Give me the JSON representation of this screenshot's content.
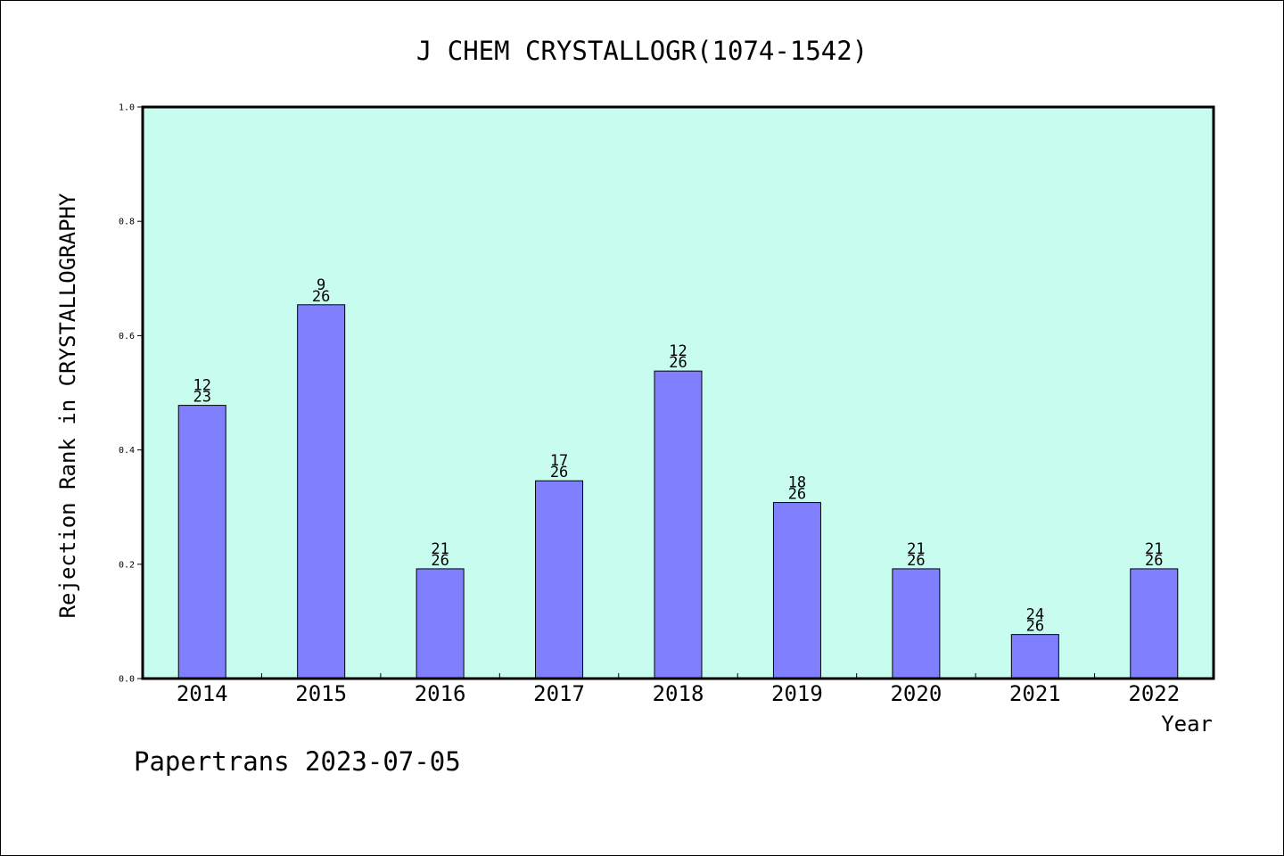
{
  "chart_data": {
    "type": "bar",
    "title": "J CHEM CRYSTALLOGR(1074-1542)",
    "xlabel": "Year",
    "ylabel": "Rejection Rank in CRYSTALLOGRAPHY",
    "categories": [
      "2014",
      "2015",
      "2016",
      "2017",
      "2018",
      "2019",
      "2020",
      "2021",
      "2022"
    ],
    "values": [
      0.478,
      0.654,
      0.192,
      0.346,
      0.538,
      0.308,
      0.192,
      0.077,
      0.192
    ],
    "labels_top": [
      "12",
      "9",
      "21",
      "17",
      "12",
      "18",
      "21",
      "24",
      "21"
    ],
    "labels_bottom": [
      "23",
      "26",
      "26",
      "26",
      "26",
      "26",
      "26",
      "26",
      "26"
    ],
    "ylim": [
      0,
      1.0
    ],
    "yticks": [
      "0.0",
      "0.2",
      "0.4",
      "0.6",
      "0.8",
      "1.0"
    ],
    "grid": false,
    "colors": {
      "plot_background": "#c8fcee",
      "bar_fill": "#8080ff",
      "bar_stroke": "#000000"
    }
  },
  "footer": {
    "credit": "Papertrans 2023-07-05"
  }
}
